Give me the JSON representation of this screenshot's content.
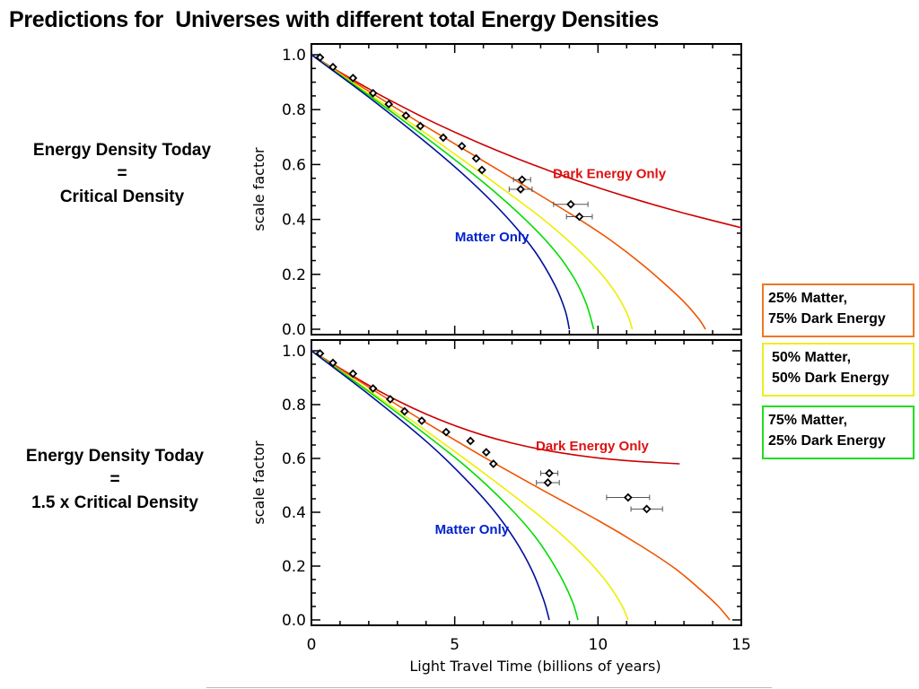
{
  "title": "Predictions for  Universes with different total Energy Densities",
  "side_labels": {
    "top": [
      "Energy Density Today",
      "=",
      "Critical Density"
    ],
    "bottom": [
      "Energy Density Today",
      "=",
      "1.5 x Critical Density"
    ]
  },
  "legend": [
    {
      "line1": "25% Matter,",
      "line2": "75% Dark Energy",
      "color": "#ee7722"
    },
    {
      "line1": "50% Matter,",
      "line2": "50% Dark Energy",
      "color": "#eeee22"
    },
    {
      "line1": "75% Matter,",
      "line2": "25% Dark Energy",
      "color": "#22dd22"
    }
  ],
  "chart_data": [
    {
      "type": "line",
      "xlabel": "",
      "ylabel": "scale factor",
      "xlim": [
        0,
        15
      ],
      "ylim": [
        0,
        1.0
      ],
      "yticks": [
        "0.0",
        "0.2",
        "0.4",
        "0.6",
        "0.8",
        "1.0"
      ],
      "annotations": [
        {
          "text": "Dark Energy Only",
          "x": 10.4,
          "y": 0.55,
          "color": "#dd1111"
        },
        {
          "text": "Matter Only",
          "x": 6.3,
          "y": 0.32,
          "color": "#0022cc"
        }
      ],
      "series": [
        {
          "color": "#cc0000",
          "x": [
            0,
            1,
            2,
            3,
            4,
            5,
            6,
            7,
            8,
            9,
            10,
            11,
            12,
            13,
            14,
            15
          ],
          "y": [
            1.0,
            0.936,
            0.876,
            0.82,
            0.767,
            0.718,
            0.672,
            0.629,
            0.589,
            0.551,
            0.516,
            0.483,
            0.452,
            0.423,
            0.396,
            0.37
          ]
        },
        {
          "color": "#ee5500",
          "x": [
            0,
            2,
            4,
            6,
            8,
            9.5,
            10.5,
            11.5,
            12.3,
            13,
            13.5,
            13.75
          ],
          "y": [
            1.0,
            0.867,
            0.738,
            0.613,
            0.487,
            0.39,
            0.32,
            0.24,
            0.168,
            0.1,
            0.04,
            0.0
          ]
        },
        {
          "color": "#eeee00",
          "x": [
            0,
            2,
            4,
            6,
            8,
            9.2,
            10,
            10.6,
            11,
            11.2
          ],
          "y": [
            1.0,
            0.858,
            0.713,
            0.563,
            0.408,
            0.3,
            0.215,
            0.135,
            0.06,
            0.0
          ]
        },
        {
          "color": "#00dd00",
          "x": [
            0,
            2,
            4,
            6,
            7.5,
            8.5,
            9.2,
            9.6,
            9.85
          ],
          "y": [
            1.0,
            0.852,
            0.698,
            0.535,
            0.396,
            0.285,
            0.18,
            0.09,
            0.0
          ]
        },
        {
          "color": "#001199",
          "x": [
            0,
            2,
            4,
            5.5,
            6.8,
            7.8,
            8.5,
            8.85,
            9.0
          ],
          "y": [
            1.0,
            0.845,
            0.68,
            0.545,
            0.41,
            0.283,
            0.16,
            0.07,
            0.0
          ]
        }
      ],
      "points": [
        {
          "x": 0.3,
          "y": 0.99
        },
        {
          "x": 0.75,
          "y": 0.955
        },
        {
          "x": 1.45,
          "y": 0.915
        },
        {
          "x": 2.15,
          "y": 0.86
        },
        {
          "x": 2.7,
          "y": 0.82
        },
        {
          "x": 3.3,
          "y": 0.778
        },
        {
          "x": 3.8,
          "y": 0.74
        },
        {
          "x": 4.6,
          "y": 0.698
        },
        {
          "x": 5.25,
          "y": 0.667
        },
        {
          "x": 5.75,
          "y": 0.622
        },
        {
          "x": 5.95,
          "y": 0.58
        },
        {
          "x": 7.35,
          "y": 0.545,
          "xerr": 0.3
        },
        {
          "x": 7.3,
          "y": 0.51,
          "xerr": 0.4
        },
        {
          "x": 9.05,
          "y": 0.455,
          "xerr": 0.6
        },
        {
          "x": 9.35,
          "y": 0.41,
          "xerr": 0.45
        }
      ]
    },
    {
      "type": "line",
      "xlabel": "Light Travel Time (billions of years)",
      "ylabel": "scale factor",
      "xlim": [
        0,
        15
      ],
      "ylim": [
        0,
        1.0
      ],
      "xticks": [
        "0",
        "5",
        "10",
        "15"
      ],
      "yticks": [
        "0.0",
        "0.2",
        "0.4",
        "0.6",
        "0.8",
        "1.0"
      ],
      "annotations": [
        {
          "text": "Dark Energy Only",
          "x": 9.8,
          "y": 0.63,
          "color": "#dd1111"
        },
        {
          "text": "Matter Only",
          "x": 5.6,
          "y": 0.32,
          "color": "#0022cc"
        }
      ],
      "series": [
        {
          "color": "#cc0000",
          "x": [
            0,
            1,
            2,
            3,
            4,
            5,
            6,
            7,
            8,
            9,
            10,
            11,
            12,
            12.85
          ],
          "y": [
            1.0,
            0.935,
            0.872,
            0.815,
            0.765,
            0.722,
            0.686,
            0.657,
            0.634,
            0.616,
            0.602,
            0.592,
            0.585,
            0.58
          ]
        },
        {
          "color": "#ee5500",
          "x": [
            0,
            2,
            4,
            6,
            8,
            10,
            11.5,
            12.7,
            13.6,
            14.2,
            14.6
          ],
          "y": [
            1.0,
            0.865,
            0.733,
            0.606,
            0.486,
            0.37,
            0.275,
            0.19,
            0.11,
            0.05,
            0.0
          ]
        },
        {
          "color": "#eeee00",
          "x": [
            0,
            2,
            4,
            6,
            8,
            9.2,
            10.2,
            10.8,
            11.05
          ],
          "y": [
            1.0,
            0.853,
            0.703,
            0.547,
            0.383,
            0.27,
            0.155,
            0.06,
            0.0
          ]
        },
        {
          "color": "#00dd00",
          "x": [
            0,
            2,
            4,
            5.5,
            6.8,
            7.8,
            8.6,
            9.1,
            9.3
          ],
          "y": [
            1.0,
            0.848,
            0.688,
            0.56,
            0.43,
            0.31,
            0.18,
            0.07,
            0.0
          ]
        },
        {
          "color": "#001199",
          "x": [
            0,
            2,
            4,
            5.3,
            6.3,
            7.1,
            7.7,
            8.1,
            8.3
          ],
          "y": [
            1.0,
            0.838,
            0.664,
            0.532,
            0.415,
            0.298,
            0.183,
            0.075,
            0.0
          ]
        }
      ],
      "points": [
        {
          "x": 0.3,
          "y": 0.99
        },
        {
          "x": 0.75,
          "y": 0.955
        },
        {
          "x": 1.45,
          "y": 0.915
        },
        {
          "x": 2.15,
          "y": 0.86
        },
        {
          "x": 2.75,
          "y": 0.82
        },
        {
          "x": 3.25,
          "y": 0.775
        },
        {
          "x": 3.85,
          "y": 0.74
        },
        {
          "x": 4.7,
          "y": 0.698
        },
        {
          "x": 5.55,
          "y": 0.665
        },
        {
          "x": 6.1,
          "y": 0.623
        },
        {
          "x": 6.35,
          "y": 0.58
        },
        {
          "x": 8.3,
          "y": 0.545,
          "xerr": 0.3
        },
        {
          "x": 8.25,
          "y": 0.51,
          "xerr": 0.4
        },
        {
          "x": 11.05,
          "y": 0.455,
          "xerr": 0.75
        },
        {
          "x": 11.7,
          "y": 0.412,
          "xerr": 0.55
        }
      ]
    }
  ]
}
